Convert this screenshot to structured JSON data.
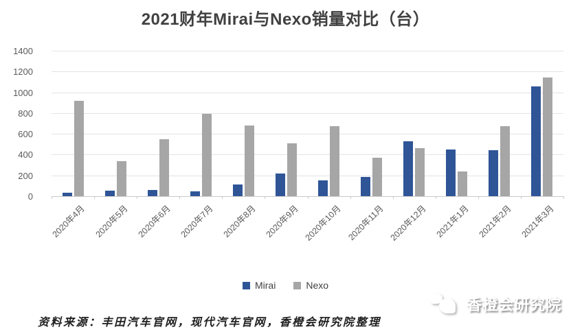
{
  "title": "2021财年Mirai与Nexo销量对比（台）",
  "chart_data": {
    "type": "bar",
    "categories": [
      "2020年4月",
      "2020年5月",
      "2020年6月",
      "2020年7月",
      "2020年8月",
      "2020年9月",
      "2020年10月",
      "2020年11月",
      "2020年12月",
      "2021年1月",
      "2021年2月",
      "2021年3月"
    ],
    "series": [
      {
        "name": "Mirai",
        "color": "#2F5597",
        "values": [
          35,
          55,
          60,
          45,
          110,
          215,
          155,
          185,
          530,
          450,
          445,
          1060
        ]
      },
      {
        "name": "Nexo",
        "color": "#A6A6A6",
        "values": [
          920,
          340,
          550,
          790,
          680,
          510,
          675,
          370,
          460,
          240,
          675,
          1145
        ]
      }
    ],
    "title": "2021财年Mirai与Nexo销量对比（台）",
    "xlabel": "",
    "ylabel": "",
    "ylim": [
      0,
      1400
    ],
    "yticks": [
      0,
      200,
      400,
      600,
      800,
      1000,
      1200,
      1400
    ],
    "grid": "horizontal",
    "legend_position": "bottom"
  },
  "legend": {
    "items": [
      {
        "label": "Mirai",
        "color": "#2F5597"
      },
      {
        "label": "Nexo",
        "color": "#A6A6A6"
      }
    ]
  },
  "footer": {
    "source_text": "资料来源：丰田汽车官网，现代汽车官网，香橙会研究院整理"
  },
  "watermark": {
    "text": "香橙会研究院",
    "icon": "chat-bubbles-logo-icon"
  },
  "colors": {
    "mirai_bar": "#2F5597",
    "nexo_bar": "#A6A6A6",
    "gridline": "#E3E3E3",
    "axis": "#C9C9C9",
    "tick_label": "#595959",
    "title_text": "#404040"
  }
}
